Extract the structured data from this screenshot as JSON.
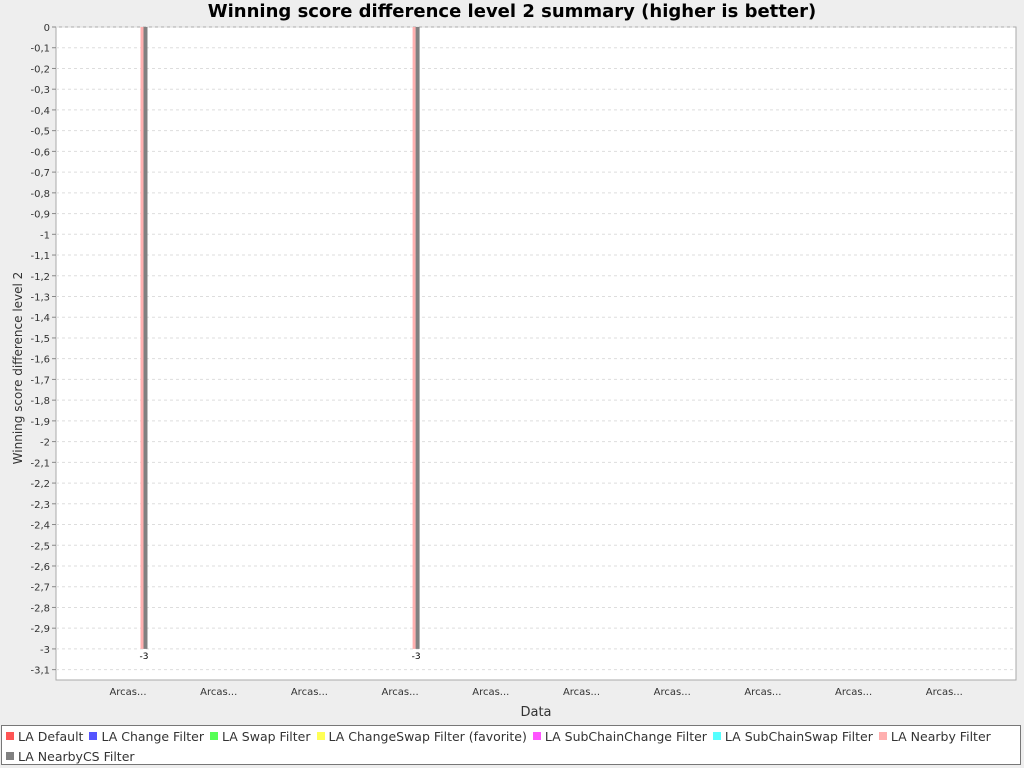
{
  "chart_data": {
    "type": "bar",
    "title": "Winning score difference level 2 summary (higher is better)",
    "xlabel": "Data",
    "ylabel": "Winning score difference level 2",
    "categories": [
      "Arcas...",
      "Arcas...",
      "Arcas...",
      "Arcas...",
      "Arcas...",
      "Arcas...",
      "Arcas...",
      "Arcas...",
      "Arcas...",
      "Arcas..."
    ],
    "ylim": [
      -3.15,
      0
    ],
    "yticks": [
      "0",
      "-0,1",
      "-0,2",
      "-0,3",
      "-0,4",
      "-0,5",
      "-0,6",
      "-0,7",
      "-0,8",
      "-0,9",
      "-1",
      "-1,1",
      "-1,2",
      "-1,3",
      "-1,4",
      "-1,5",
      "-1,6",
      "-1,7",
      "-1,8",
      "-1,9",
      "-2",
      "-2,1",
      "-2,2",
      "-2,3",
      "-2,4",
      "-2,5",
      "-2,6",
      "-2,7",
      "-2,8",
      "-2,9",
      "-3",
      "-3,1"
    ],
    "grid": true,
    "legend_position": "bottom",
    "series": [
      {
        "name": "LA Default",
        "color": "#ff5555",
        "values": [
          null,
          null,
          null,
          null,
          null,
          null,
          null,
          null,
          null,
          null
        ]
      },
      {
        "name": "LA Change Filter",
        "color": "#5555ff",
        "values": [
          null,
          null,
          null,
          null,
          null,
          null,
          null,
          null,
          null,
          null
        ]
      },
      {
        "name": "LA Swap Filter",
        "color": "#55ff55",
        "values": [
          null,
          null,
          null,
          null,
          null,
          null,
          null,
          null,
          null,
          null
        ]
      },
      {
        "name": "LA ChangeSwap Filter (favorite)",
        "color": "#ffff55",
        "values": [
          null,
          null,
          null,
          null,
          null,
          null,
          null,
          null,
          null,
          null
        ]
      },
      {
        "name": "LA SubChainChange Filter",
        "color": "#ff55ff",
        "values": [
          null,
          null,
          null,
          null,
          null,
          null,
          null,
          null,
          null,
          null
        ]
      },
      {
        "name": "LA SubChainSwap Filter",
        "color": "#55ffff",
        "values": [
          null,
          null,
          null,
          null,
          null,
          null,
          null,
          null,
          null,
          null
        ]
      },
      {
        "name": "LA Nearby Filter",
        "color": "#ffafaf",
        "values": [
          -3,
          null,
          null,
          -3,
          null,
          null,
          null,
          null,
          null,
          null
        ]
      },
      {
        "name": "LA NearbyCS Filter",
        "color": "#808080",
        "values": [
          -3,
          null,
          null,
          -3,
          null,
          null,
          null,
          null,
          null,
          null
        ]
      }
    ],
    "data_labels": [
      {
        "category_index": 0,
        "text": "-3"
      },
      {
        "category_index": 3,
        "text": "-3"
      }
    ]
  }
}
